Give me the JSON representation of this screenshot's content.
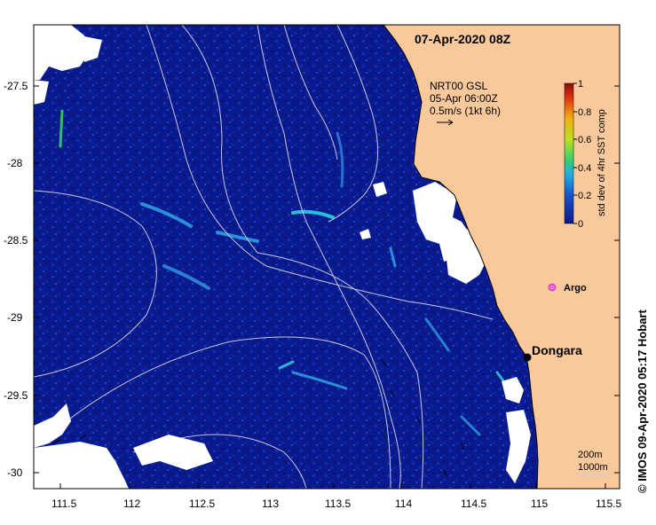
{
  "title": "07-Apr-2020 08Z",
  "axes": {
    "x_ticks": [
      "111.5",
      "112",
      "112.5",
      "113",
      "113.5",
      "114",
      "114.5",
      "115",
      "115.5"
    ],
    "y_ticks": [
      "-27.5",
      "-28",
      "-28.5",
      "-29",
      "-29.5",
      "-30"
    ]
  },
  "current_legend": {
    "line1": "NRT00 GSL",
    "line2": "05-Apr 06:00Z",
    "line3": "0.5m/s (1kt 6h)"
  },
  "colorbar": {
    "label": "std dev of 4hr SST comp",
    "ticks": [
      "1",
      "0.8",
      "0.6",
      "0.4",
      "0.2",
      "0"
    ]
  },
  "markers": {
    "argo_label": "Argo",
    "town_label": "Dongara"
  },
  "bathymetry_legend": {
    "contour1": "200m",
    "contour2": "1000m"
  },
  "credit": "© IMOS 09-Apr-2020 05:17 Hobart",
  "colors": {
    "ocean": "#0a1a8c",
    "land": "#f9c89b",
    "contour": "#c8c8e0",
    "argo": "#e040e0"
  }
}
